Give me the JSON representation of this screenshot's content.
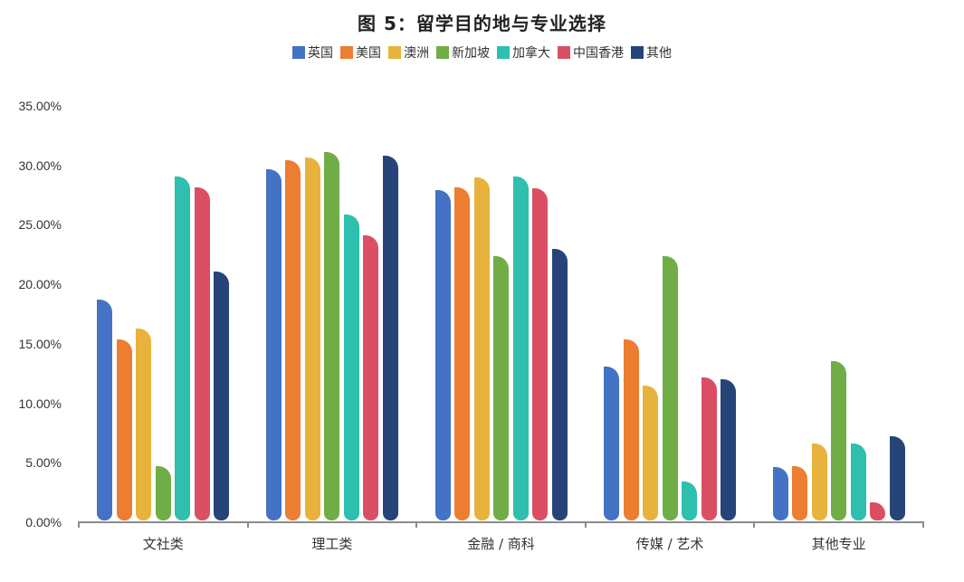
{
  "chart_data": {
    "type": "bar",
    "title": "图 5：留学目的地与专业选择",
    "xlabel": "",
    "ylabel": "",
    "ylim": [
      0,
      35
    ],
    "yticks": [
      "0.00%",
      "5.00%",
      "10.00%",
      "15.00%",
      "20.00%",
      "25.00%",
      "30.00%",
      "35.00%"
    ],
    "grid": false,
    "legend_position": "top",
    "categories": [
      "文社类",
      "理工类",
      "金融 / 商科",
      "传媒 / 艺术",
      "其他专业"
    ],
    "series": [
      {
        "name": "英国",
        "color": "#4472C4",
        "values": [
          18.6,
          29.5,
          27.8,
          12.9,
          4.5
        ]
      },
      {
        "name": "美国",
        "color": "#ED7D31",
        "values": [
          15.2,
          30.3,
          28.0,
          15.2,
          4.6
        ]
      },
      {
        "name": "澳洲",
        "color": "#E8B33C",
        "values": [
          16.1,
          30.5,
          28.8,
          11.3,
          6.5
        ]
      },
      {
        "name": "新加坡",
        "color": "#70AD47",
        "values": [
          4.6,
          31.0,
          22.2,
          22.2,
          13.4
        ]
      },
      {
        "name": "加拿大",
        "color": "#2EBFAE",
        "values": [
          28.9,
          25.7,
          28.9,
          3.3,
          6.5
        ]
      },
      {
        "name": "中国香港",
        "color": "#DB4F65",
        "values": [
          28.0,
          24.0,
          27.9,
          12.0,
          1.5
        ]
      },
      {
        "name": "其他",
        "color": "#264478",
        "values": [
          20.9,
          30.7,
          22.8,
          11.9,
          7.1
        ]
      }
    ]
  }
}
